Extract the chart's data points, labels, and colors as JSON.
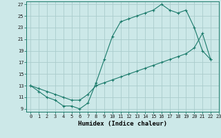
{
  "xlabel": "Humidex (Indice chaleur)",
  "background_color": "#cce8e8",
  "grid_color": "#aacccc",
  "line_color": "#1a7a6a",
  "x_upper": [
    0,
    1,
    2,
    3,
    4,
    5,
    6,
    7,
    8,
    9,
    10,
    11,
    12,
    13,
    14,
    15,
    16,
    17,
    18,
    19,
    20,
    21,
    22
  ],
  "y_upper": [
    13,
    12,
    11,
    10.5,
    9.5,
    9.5,
    9,
    10,
    13.5,
    17.5,
    21.5,
    24,
    24.5,
    25,
    25.5,
    26,
    27,
    26,
    25.5,
    26,
    23,
    19,
    17.5
  ],
  "x_lower": [
    0,
    1,
    2,
    3,
    4,
    5,
    6,
    7,
    8,
    9,
    10,
    11,
    12,
    13,
    14,
    15,
    16,
    17,
    18,
    19,
    20,
    21,
    22
  ],
  "y_lower": [
    13,
    12.5,
    12,
    11.5,
    11,
    10.5,
    10.5,
    11.5,
    13,
    13.5,
    14,
    14.5,
    15,
    15.5,
    16,
    16.5,
    17,
    17.5,
    18,
    18.5,
    19.5,
    22,
    17.5
  ],
  "xlim": [
    -0.5,
    23
  ],
  "ylim": [
    8.5,
    27.5
  ],
  "yticks": [
    9,
    11,
    13,
    15,
    17,
    19,
    21,
    23,
    25,
    27
  ],
  "xticks": [
    0,
    1,
    2,
    3,
    4,
    5,
    6,
    7,
    8,
    9,
    10,
    11,
    12,
    13,
    14,
    15,
    16,
    17,
    18,
    19,
    20,
    21,
    22,
    23
  ],
  "tick_fontsize": 5,
  "xlabel_fontsize": 6.5
}
